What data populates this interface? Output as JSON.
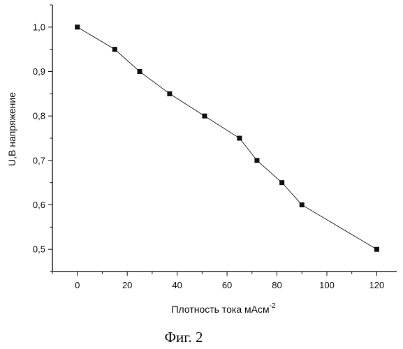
{
  "chart_data": {
    "type": "line",
    "x": [
      0,
      15,
      25,
      37,
      51,
      65,
      72,
      82,
      90,
      120
    ],
    "series": [
      {
        "values": [
          1.0,
          0.95,
          0.9,
          0.85,
          0.8,
          0.75,
          0.7,
          0.65,
          0.6,
          0.5
        ]
      }
    ],
    "xlabel_main": "Плотность тока мАсм",
    "xlabel_sup": "-2",
    "ylabel": "U,B напряжение",
    "xlim": [
      -10,
      128
    ],
    "ylim": [
      0.45,
      1.05
    ],
    "xticks": [
      0,
      20,
      40,
      60,
      80,
      100,
      120
    ],
    "yticks": [
      0.5,
      0.6,
      0.7,
      0.8,
      0.9,
      1.0
    ],
    "ytick_labels": [
      "0,5",
      "0,6",
      "0,7",
      "0,8",
      "0,9",
      "1,0"
    ],
    "grid": false,
    "line_color": "#333333",
    "marker_color": "#111111",
    "marker": "square"
  },
  "caption": "Фиг. 2"
}
